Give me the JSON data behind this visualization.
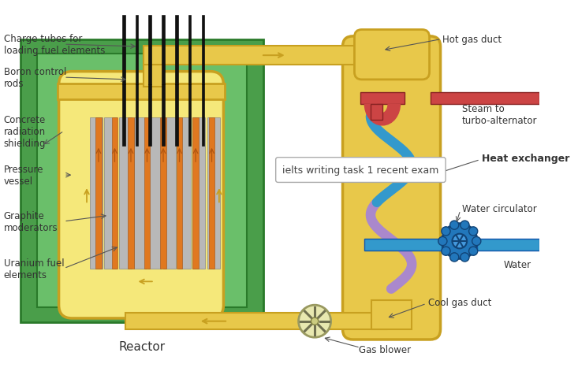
{
  "bg_color": "#ffffff",
  "labels": {
    "charge_tubes": "Charge tubes for\nloading fuel elements",
    "boron_rods": "Boron control\nrods",
    "concrete": "Concrete\nradiation\nshielding",
    "pressure_vessel": "Pressure\nvessel",
    "graphite": "Graphite\nmoderators",
    "uranium": "Uranium fuel\nelements",
    "reactor": "Reactor",
    "hot_gas_duct": "Hot gas duct",
    "steam": "Steam to\nturbo-alternator",
    "heat_exchanger": "Heat exchanger",
    "water_circulator": "Water circulator",
    "water": "Water",
    "cool_gas_duct": "Cool gas duct",
    "gas_blower": "Gas blower",
    "watermark": "ielts writing task 1 recent exam"
  },
  "green_outer": "#4a9e4a",
  "green_inner": "#6abf6a",
  "yellow": "#e8c84a",
  "yellow_dark": "#c8a020",
  "orange": "#e07820",
  "cream": "#f5e87a",
  "red_pipe": "#cc4444",
  "blue_pipe": "#3399cc",
  "purple_pipe": "#aa88cc",
  "label_color": "#333333"
}
